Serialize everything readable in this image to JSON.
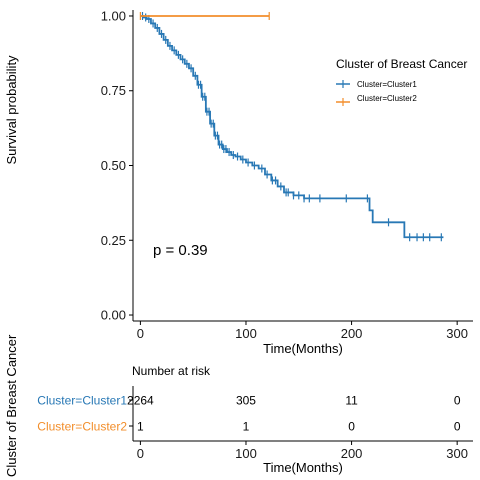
{
  "chart_data": {
    "type": "line",
    "subtype": "kaplan-meier",
    "xlabel": "Time(Months)",
    "ylabel": "Survival probability",
    "xlim": [
      -7,
      315
    ],
    "ylim": [
      -0.02,
      1.02
    ],
    "x_ticks": [
      0,
      100,
      200,
      300
    ],
    "y_ticks": [
      0.0,
      0.25,
      0.5,
      0.75,
      1.0
    ],
    "x_tick_labels": [
      "0",
      "100",
      "200",
      "300"
    ],
    "y_tick_labels": [
      "0.00",
      "0.25",
      "0.50",
      "0.75",
      "1.00"
    ],
    "grid": false,
    "legend": {
      "title": "Cluster of Breast Cancer",
      "position": "right",
      "entries": [
        "Cluster=Cluster1",
        "Cluster=Cluster2"
      ]
    },
    "annotation": "p = 0.39",
    "series": [
      {
        "name": "Cluster=Cluster1",
        "color": "#2878b5",
        "x": [
          0,
          3,
          6,
          10,
          14,
          18,
          22,
          26,
          30,
          34,
          38,
          42,
          46,
          50,
          54,
          58,
          62,
          66,
          70,
          74,
          78,
          82,
          86,
          90,
          95,
          100,
          106,
          112,
          118,
          124,
          130,
          136,
          145,
          155,
          165,
          175,
          190,
          210,
          217,
          220,
          240,
          250,
          260,
          270,
          287
        ],
        "y": [
          1.0,
          0.995,
          0.99,
          0.975,
          0.96,
          0.94,
          0.92,
          0.9,
          0.885,
          0.87,
          0.855,
          0.84,
          0.825,
          0.8,
          0.77,
          0.73,
          0.68,
          0.64,
          0.6,
          0.57,
          0.555,
          0.545,
          0.535,
          0.53,
          0.52,
          0.51,
          0.5,
          0.49,
          0.47,
          0.45,
          0.43,
          0.41,
          0.4,
          0.39,
          0.39,
          0.39,
          0.39,
          0.39,
          0.35,
          0.31,
          0.31,
          0.26,
          0.26,
          0.26,
          0.26
        ],
        "censor_x": [
          2,
          5,
          8,
          12,
          16,
          20,
          24,
          28,
          32,
          36,
          40,
          44,
          48,
          52,
          55,
          57,
          59,
          61,
          63,
          65,
          67,
          69,
          71,
          73,
          75,
          77,
          79,
          81,
          84,
          88,
          92,
          97,
          102,
          108,
          115,
          120,
          125,
          128,
          133,
          138,
          140,
          145,
          150,
          155,
          160,
          170,
          195,
          215,
          235,
          255,
          262,
          268,
          274,
          285
        ]
      },
      {
        "name": "Cluster=Cluster2",
        "color": "#f28e2b",
        "x": [
          0,
          122
        ],
        "y": [
          1.0,
          1.0
        ],
        "censor_x": [
          0,
          122
        ]
      }
    ],
    "risk_table": {
      "title": "Number at risk",
      "xlabel": "Time(Months)",
      "ylabel": "Cluster of Breast Cancer",
      "times": [
        0,
        100,
        200,
        300
      ],
      "time_labels": [
        "0",
        "100",
        "200",
        "300"
      ],
      "rows": [
        {
          "label": "Cluster=Cluster1",
          "color": "#2878b5",
          "counts": [
            "2264",
            "305",
            "11",
            "0"
          ]
        },
        {
          "label": "Cluster=Cluster2",
          "color": "#f28e2b",
          "counts": [
            "1",
            "1",
            "0",
            "0"
          ]
        }
      ]
    }
  }
}
